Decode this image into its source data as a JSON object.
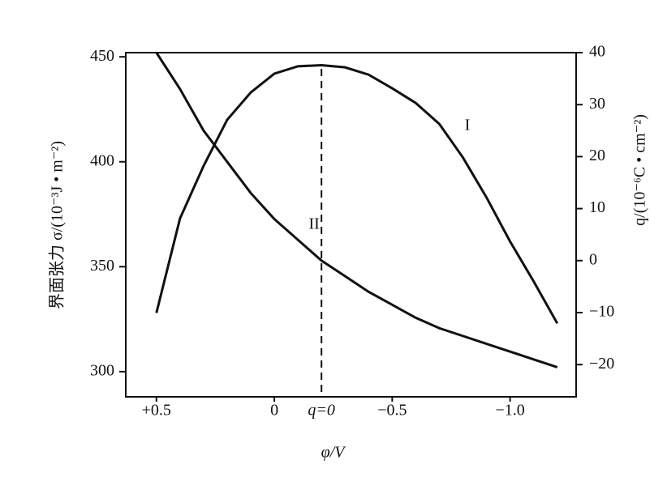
{
  "chart_data": {
    "type": "line",
    "x_label": "φ/V",
    "y_label": "界面张力  σ/(10⁻³J • m⁻²)",
    "y2_label": "q/(10⁻⁶C • cm⁻²)",
    "x": [
      0.5,
      0.4,
      0.3,
      0.2,
      0.1,
      0,
      -0.1,
      -0.2,
      -0.3,
      -0.4,
      -0.5,
      -0.6,
      -0.7,
      -0.8,
      -0.9,
      -1.0,
      -1.1,
      -1.2
    ],
    "series": [
      {
        "name": "I",
        "color": "#111111",
        "axis": "y",
        "values": [
          328,
          373,
          398,
          420,
          433,
          442,
          445.5,
          446,
          445,
          441.5,
          435,
          428,
          418,
          402,
          383,
          362,
          343,
          323
        ]
      },
      {
        "name": "II",
        "color": "#111111",
        "axis": "y2",
        "values": [
          40,
          33,
          25,
          19,
          13,
          8,
          4,
          0,
          -3,
          -6,
          -8.5,
          -11,
          -13,
          -14.5,
          -16,
          -17.5,
          -19,
          -20.5
        ]
      }
    ],
    "xlim": [
      0.63,
      -1.28
    ],
    "xticks": [
      {
        "value": 0.5,
        "label": "+0.5"
      },
      0,
      {
        "value": -0.5,
        "label": "−0.5"
      },
      {
        "value": -1.0,
        "label": "−1.0"
      }
    ],
    "ylim": [
      288,
      452
    ],
    "yticks": [
      300,
      350,
      400,
      450
    ],
    "y2lim": [
      -26.2,
      40
    ],
    "y2ticks": [
      {
        "value": -20,
        "label": "−20"
      },
      {
        "value": -10,
        "label": "−10"
      },
      0,
      10,
      20,
      30,
      40
    ],
    "annotations": [
      {
        "text": "q=0",
        "x": -0.2
      }
    ]
  }
}
